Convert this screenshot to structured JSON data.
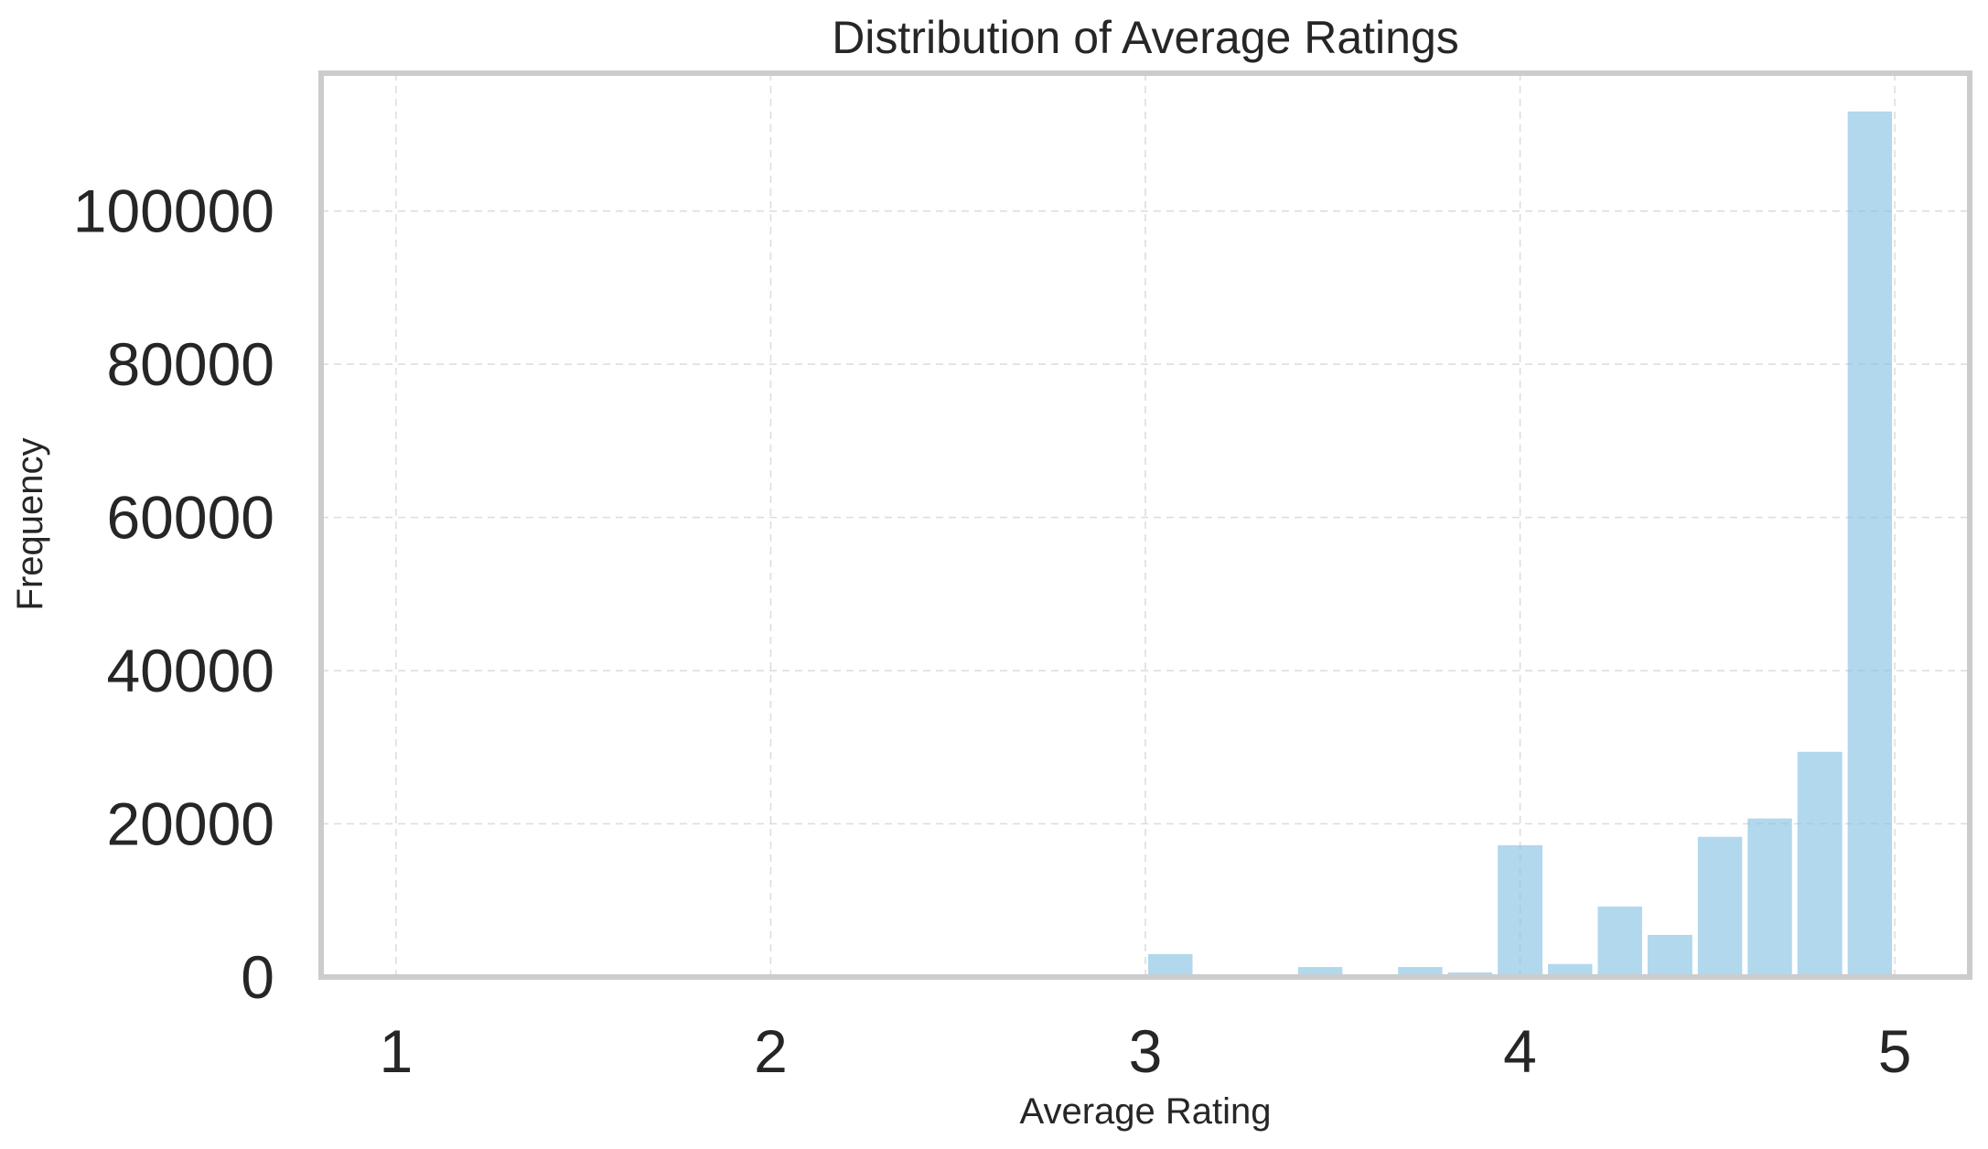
{
  "chart_data": {
    "type": "bar",
    "title": "Distribution of Average Ratings",
    "xlabel": "Average Rating",
    "ylabel": "Frequency",
    "xlim": [
      0.8,
      5.2
    ],
    "ylim": [
      0,
      118000
    ],
    "xticks": [
      1,
      2,
      3,
      4,
      5
    ],
    "yticks": [
      0,
      20000,
      40000,
      60000,
      80000,
      100000
    ],
    "grid": true,
    "bar_color": "#87c3e3",
    "bins": [
      {
        "x0": 1.0,
        "x1": 1.133,
        "value": 0
      },
      {
        "x0": 2.0,
        "x1": 2.133,
        "value": 0
      },
      {
        "x0": 3.0,
        "x1": 3.133,
        "value": 3000
      },
      {
        "x0": 3.133,
        "x1": 3.267,
        "value": 200
      },
      {
        "x0": 3.267,
        "x1": 3.4,
        "value": 300
      },
      {
        "x0": 3.4,
        "x1": 3.533,
        "value": 1300
      },
      {
        "x0": 3.533,
        "x1": 3.667,
        "value": 300
      },
      {
        "x0": 3.667,
        "x1": 3.8,
        "value": 1300
      },
      {
        "x0": 3.8,
        "x1": 3.933,
        "value": 600
      },
      {
        "x0": 3.933,
        "x1": 4.067,
        "value": 17200
      },
      {
        "x0": 4.067,
        "x1": 4.2,
        "value": 1700
      },
      {
        "x0": 4.2,
        "x1": 4.333,
        "value": 9200
      },
      {
        "x0": 4.333,
        "x1": 4.467,
        "value": 5500
      },
      {
        "x0": 4.467,
        "x1": 4.6,
        "value": 18300
      },
      {
        "x0": 4.6,
        "x1": 4.733,
        "value": 20700
      },
      {
        "x0": 4.733,
        "x1": 4.867,
        "value": 29400
      },
      {
        "x0": 4.867,
        "x1": 5.0,
        "value": 113000
      }
    ]
  }
}
